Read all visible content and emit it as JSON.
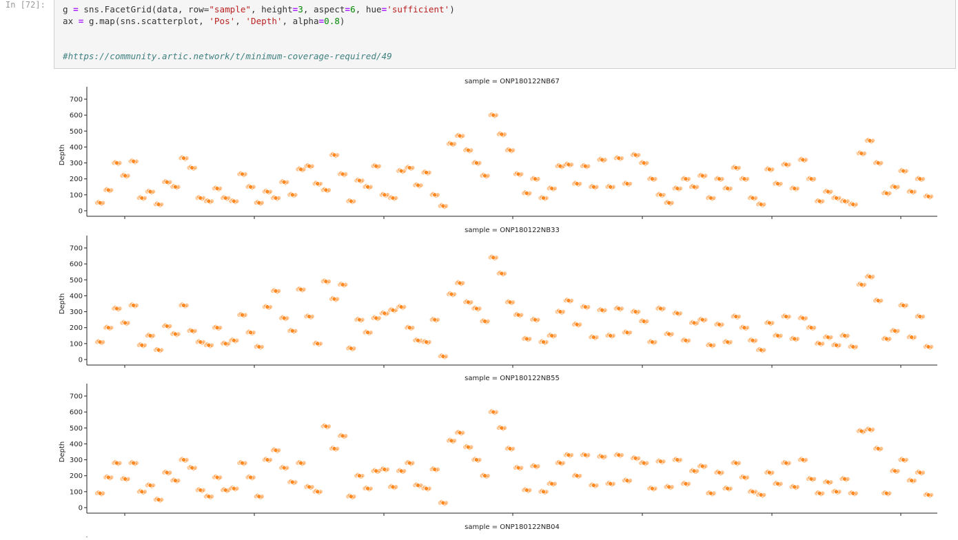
{
  "notebook": {
    "prompt": "In [72]:",
    "code_lines": [
      {
        "segments": [
          [
            "",
            "g "
          ],
          [
            "op",
            "="
          ],
          [
            "",
            " sns.FacetGrid(data, row="
          ],
          [
            "st",
            "\"sample\""
          ],
          [
            "",
            ", height"
          ],
          [
            "op",
            "="
          ],
          [
            "nm",
            "3"
          ],
          [
            "",
            ", aspect"
          ],
          [
            "op",
            "="
          ],
          [
            "nm",
            "6"
          ],
          [
            "",
            ", hue"
          ],
          [
            "op",
            "="
          ],
          [
            "st",
            "'sufficient'"
          ],
          [
            "",
            ")"
          ]
        ]
      },
      {
        "segments": [
          [
            "",
            "ax "
          ],
          [
            "op",
            "="
          ],
          [
            "",
            " g.map(sns.scatterplot, "
          ],
          [
            "st",
            "'Pos'"
          ],
          [
            "",
            ", "
          ],
          [
            "st",
            "'Depth'"
          ],
          [
            "",
            ", alpha"
          ],
          [
            "op",
            "="
          ],
          [
            "nm",
            "0.8"
          ],
          [
            "",
            ")"
          ]
        ]
      },
      {
        "segments": [
          [
            "",
            ""
          ]
        ]
      },
      {
        "segments": [
          [
            "",
            ""
          ]
        ]
      },
      {
        "segments": [
          [
            "cm",
            "#https://community.artic.network/t/minimum-coverage-required/49"
          ]
        ]
      }
    ]
  },
  "chart_data": [
    {
      "type": "scatter",
      "title": "sample = ONP180122NB67",
      "ylabel": "Depth",
      "ylim": [
        0,
        750
      ],
      "yticks": [
        "0",
        "100",
        "200",
        "300",
        "400",
        "500",
        "600",
        "700"
      ],
      "series": [
        {
          "color": "#ff7f0e",
          "x": [
            1,
            2,
            3,
            4,
            5,
            6,
            7,
            8,
            9,
            10,
            11,
            12,
            13,
            14,
            15,
            16,
            17,
            18,
            19,
            20,
            21,
            22,
            23,
            24,
            25,
            26,
            27,
            28,
            29,
            30,
            31,
            32,
            33,
            34,
            35,
            36,
            37,
            38,
            39,
            40,
            41,
            42,
            43,
            44,
            45,
            46,
            47,
            48,
            49,
            50,
            51,
            52,
            53,
            54,
            55,
            56,
            57,
            58,
            59,
            60,
            61,
            62,
            63,
            64,
            65,
            66,
            67,
            68,
            69,
            70,
            71,
            72,
            73,
            74,
            75,
            76,
            77,
            78,
            79,
            80,
            81,
            82,
            83,
            84,
            85,
            86,
            87,
            88,
            89,
            90,
            91,
            92,
            93,
            94,
            95,
            96,
            97,
            98,
            99,
            100
          ],
          "y": [
            50,
            130,
            300,
            220,
            310,
            80,
            120,
            40,
            180,
            150,
            330,
            270,
            80,
            60,
            140,
            80,
            60,
            230,
            150,
            50,
            120,
            80,
            180,
            100,
            260,
            280,
            170,
            130,
            350,
            230,
            60,
            190,
            150,
            280,
            100,
            80,
            250,
            270,
            160,
            240,
            100,
            30,
            420,
            470,
            380,
            300,
            220,
            600,
            480,
            380,
            230,
            110,
            200,
            80,
            140,
            280,
            290,
            170,
            280,
            150,
            320,
            150,
            330,
            170,
            350,
            300,
            200,
            100,
            50,
            140,
            200,
            150,
            220,
            80,
            200,
            140,
            270,
            200,
            80,
            40,
            260,
            170,
            290,
            140,
            320,
            200,
            60,
            120,
            80,
            60,
            40,
            360,
            440,
            300,
            110,
            150,
            250,
            120,
            200,
            90
          ]
        }
      ]
    },
    {
      "type": "scatter",
      "title": "sample = ONP180122NB33",
      "ylabel": "Depth",
      "ylim": [
        0,
        750
      ],
      "yticks": [
        "0",
        "100",
        "200",
        "300",
        "400",
        "500",
        "600",
        "700"
      ],
      "series": [
        {
          "color": "#ff7f0e",
          "x": [
            1,
            2,
            3,
            4,
            5,
            6,
            7,
            8,
            9,
            10,
            11,
            12,
            13,
            14,
            15,
            16,
            17,
            18,
            19,
            20,
            21,
            22,
            23,
            24,
            25,
            26,
            27,
            28,
            29,
            30,
            31,
            32,
            33,
            34,
            35,
            36,
            37,
            38,
            39,
            40,
            41,
            42,
            43,
            44,
            45,
            46,
            47,
            48,
            49,
            50,
            51,
            52,
            53,
            54,
            55,
            56,
            57,
            58,
            59,
            60,
            61,
            62,
            63,
            64,
            65,
            66,
            67,
            68,
            69,
            70,
            71,
            72,
            73,
            74,
            75,
            76,
            77,
            78,
            79,
            80,
            81,
            82,
            83,
            84,
            85,
            86,
            87,
            88,
            89,
            90,
            91,
            92,
            93,
            94,
            95,
            96,
            97,
            98,
            99,
            100
          ],
          "y": [
            110,
            200,
            320,
            230,
            340,
            90,
            150,
            60,
            210,
            160,
            340,
            180,
            110,
            90,
            200,
            100,
            120,
            280,
            170,
            80,
            330,
            430,
            260,
            180,
            440,
            270,
            100,
            490,
            380,
            470,
            70,
            250,
            170,
            260,
            290,
            310,
            330,
            200,
            120,
            110,
            250,
            20,
            410,
            480,
            360,
            320,
            240,
            640,
            540,
            360,
            280,
            130,
            250,
            110,
            150,
            300,
            370,
            220,
            330,
            140,
            310,
            150,
            320,
            170,
            300,
            240,
            110,
            320,
            160,
            290,
            120,
            230,
            250,
            90,
            220,
            110,
            270,
            200,
            120,
            60,
            230,
            150,
            270,
            130,
            260,
            200,
            100,
            140,
            90,
            150,
            80,
            470,
            520,
            370,
            130,
            180,
            340,
            140,
            270,
            80
          ]
        }
      ]
    },
    {
      "type": "scatter",
      "title": "sample = ONP180122NB55",
      "ylabel": "Depth",
      "ylim": [
        0,
        750
      ],
      "yticks": [
        "0",
        "100",
        "200",
        "300",
        "400",
        "500",
        "600",
        "700"
      ],
      "series": [
        {
          "color": "#ff7f0e",
          "x": [
            1,
            2,
            3,
            4,
            5,
            6,
            7,
            8,
            9,
            10,
            11,
            12,
            13,
            14,
            15,
            16,
            17,
            18,
            19,
            20,
            21,
            22,
            23,
            24,
            25,
            26,
            27,
            28,
            29,
            30,
            31,
            32,
            33,
            34,
            35,
            36,
            37,
            38,
            39,
            40,
            41,
            42,
            43,
            44,
            45,
            46,
            47,
            48,
            49,
            50,
            51,
            52,
            53,
            54,
            55,
            56,
            57,
            58,
            59,
            60,
            61,
            62,
            63,
            64,
            65,
            66,
            67,
            68,
            69,
            70,
            71,
            72,
            73,
            74,
            75,
            76,
            77,
            78,
            79,
            80,
            81,
            82,
            83,
            84,
            85,
            86,
            87,
            88,
            89,
            90,
            91,
            92,
            93,
            94,
            95,
            96,
            97,
            98,
            99,
            100
          ],
          "y": [
            90,
            190,
            280,
            180,
            280,
            100,
            140,
            50,
            220,
            170,
            300,
            250,
            110,
            70,
            190,
            110,
            120,
            280,
            190,
            70,
            300,
            360,
            250,
            160,
            280,
            130,
            100,
            510,
            370,
            450,
            70,
            200,
            120,
            230,
            240,
            130,
            230,
            280,
            140,
            120,
            240,
            30,
            420,
            470,
            380,
            300,
            200,
            600,
            500,
            370,
            250,
            110,
            260,
            100,
            150,
            280,
            330,
            200,
            330,
            140,
            320,
            150,
            330,
            170,
            310,
            280,
            120,
            290,
            130,
            300,
            150,
            230,
            260,
            90,
            220,
            120,
            280,
            190,
            100,
            80,
            220,
            150,
            280,
            130,
            300,
            180,
            90,
            160,
            100,
            180,
            90,
            480,
            490,
            370,
            90,
            230,
            300,
            170,
            220,
            80
          ]
        }
      ]
    },
    {
      "type": "scatter",
      "title": "sample = ONP180122NB04",
      "ylabel": "",
      "series": []
    }
  ],
  "colors": {
    "sufficient_true": "#ff7f0e",
    "sufficient_false": "#1f77b4",
    "axis": "#222222"
  }
}
